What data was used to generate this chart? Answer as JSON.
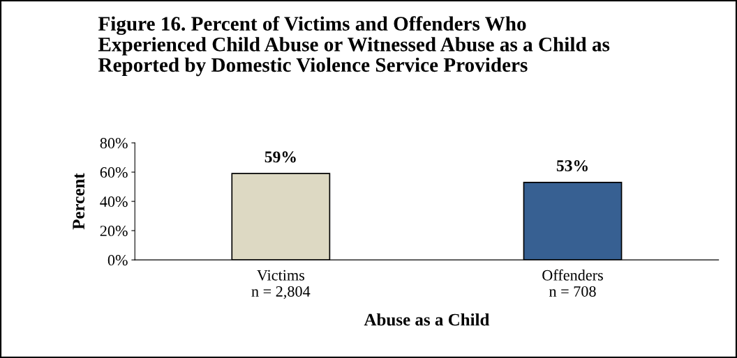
{
  "chart_data": {
    "type": "bar",
    "title": "Figure 16. Percent of Victims and Offenders Who\nExperienced Child Abuse or Witnessed Abuse as a Child as\nReported by Domestic Violence Service Providers",
    "xlabel": "Abuse as a Child",
    "ylabel": "Percent",
    "categories": [
      "Victims\nn = 2,804",
      "Offenders\nn = 708"
    ],
    "values": [
      59,
      53
    ],
    "colors": [
      "#ddd9c3",
      "#376092"
    ],
    "value_labels": [
      "59%",
      "53%"
    ],
    "ylim": [
      0,
      80
    ],
    "yticks": [
      {
        "value": 0,
        "label": "0%"
      },
      {
        "value": 20,
        "label": "20%"
      },
      {
        "value": 40,
        "label": "40%"
      },
      {
        "value": 60,
        "label": "60%"
      },
      {
        "value": 80,
        "label": "80%"
      }
    ],
    "grid": false
  }
}
